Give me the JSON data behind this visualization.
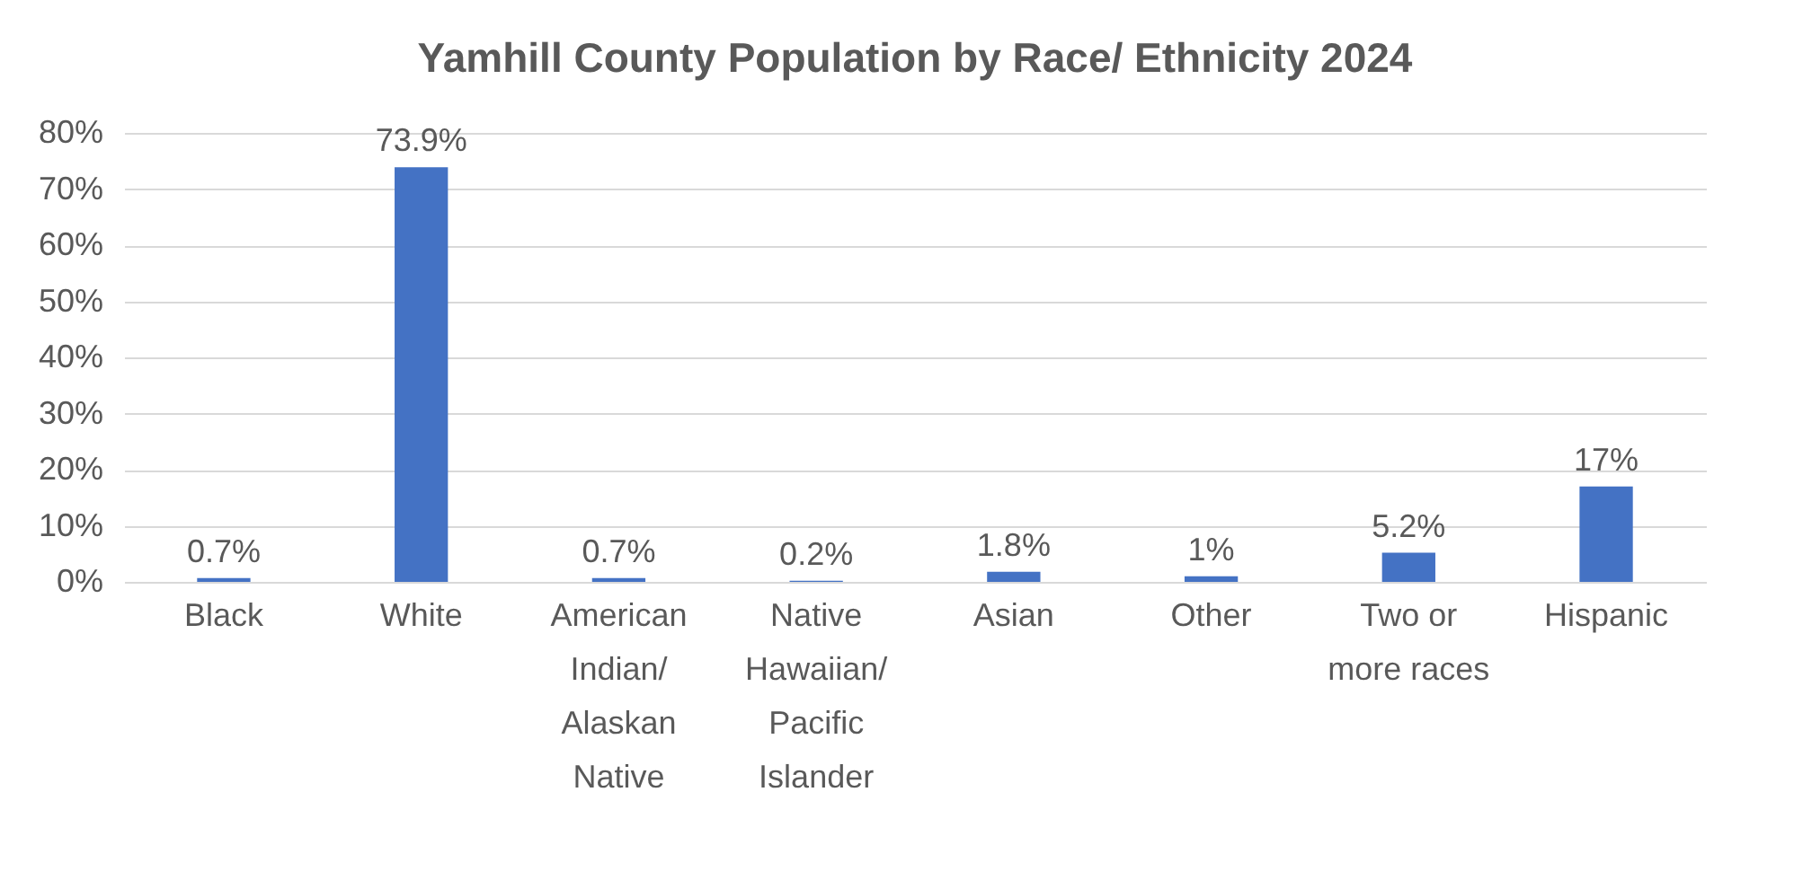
{
  "chart_data": {
    "type": "bar",
    "title": "Yamhill County Population by Race/ Ethnicity 2024",
    "categories": [
      "Black",
      "White",
      "American Indian/ Alaskan Native",
      "Native Hawaiian/ Pacific Islander",
      "Asian",
      "Other",
      "Two or more races",
      "Hispanic"
    ],
    "values": [
      0.7,
      73.9,
      0.7,
      0.2,
      1.8,
      1,
      5.2,
      17
    ],
    "value_labels": [
      "0.7%",
      "73.9%",
      "0.7%",
      "0.2%",
      "1.8%",
      "1%",
      "5.2%",
      "17%"
    ],
    "color": "#4472c4",
    "ylim": [
      0,
      80
    ],
    "yticks": [
      {
        "value": 0,
        "label": "0%"
      },
      {
        "value": 10,
        "label": "10%"
      },
      {
        "value": 20,
        "label": "20%"
      },
      {
        "value": 30,
        "label": "30%"
      },
      {
        "value": 40,
        "label": "40%"
      },
      {
        "value": 50,
        "label": "50%"
      },
      {
        "value": 60,
        "label": "60%"
      },
      {
        "value": 70,
        "label": "70%"
      },
      {
        "value": 80,
        "label": "80%"
      }
    ],
    "grid": "y"
  }
}
